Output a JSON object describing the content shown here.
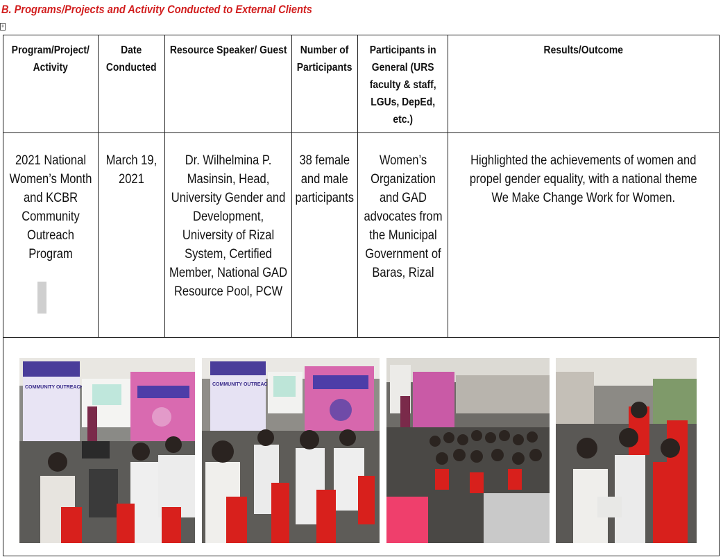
{
  "section_title": "B.  Programs/Projects and Activity Conducted to External Clients",
  "table": {
    "headers": {
      "program": "Program/Project/ Activity",
      "date": "Date Conducted",
      "speaker": "Resource Speaker/ Guest",
      "number": "Number of Participants",
      "participants": "Participants in General (URS faculty & staff, LGUs, DepEd, etc.)",
      "results": "Results/Outcome"
    },
    "row": {
      "program": "2021 National Women’s Month and KCBR Community Outreach Program",
      "date": "March 19, 2021",
      "speaker": "Dr. Wilhelmina P. Masinsin, Head, University Gender and Development, University of Rizal System, Certified Member, National GAD Resource Pool, PCW",
      "number": "38 female and male participants",
      "participants": "Women’s Organization and GAD advocates from the Municipal Government of Baras, Rizal",
      "results_line1": "Highlighted the achievements of women and propel gender equality, with a national theme",
      "results_line2": "We Make Change Work for Women."
    }
  },
  "photos": [
    {
      "name": "photo-outreach-speaker-screen",
      "banner_text": "COMMUNITY OUTREACH PROGRAM"
    },
    {
      "name": "photo-outreach-audience-chairs",
      "banner_text": "COMMUNITY OUTREACH PROGRAM"
    },
    {
      "name": "photo-outreach-crowd-tent",
      "banner_text": ""
    },
    {
      "name": "photo-outreach-participants-seated",
      "banner_text": ""
    }
  ]
}
